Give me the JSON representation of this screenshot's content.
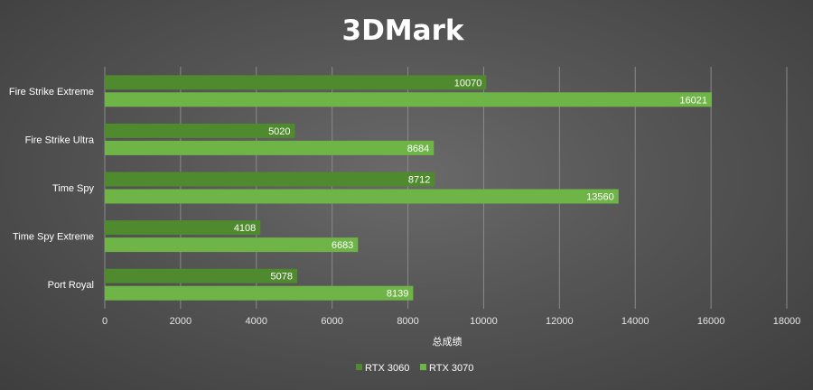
{
  "chart_data": {
    "type": "bar",
    "orientation": "horizontal",
    "title": "3DMark",
    "xlabel": "总成绩",
    "ylabel": "",
    "categories": [
      "Fire Strike Extreme",
      "Fire Strike Ultra",
      "Time Spy",
      "Time Spy Extreme",
      "Port Royal"
    ],
    "series": [
      {
        "name": "RTX 3060",
        "values": [
          10070,
          5020,
          8712,
          4108,
          5078
        ],
        "color": "#4f8a2e"
      },
      {
        "name": "RTX 3070",
        "values": [
          16021,
          8684,
          13560,
          6683,
          8139
        ],
        "color": "#6fb447"
      }
    ],
    "xlim": [
      0,
      18000
    ],
    "ticks": [
      0,
      2000,
      4000,
      6000,
      8000,
      10000,
      12000,
      14000,
      16000,
      18000
    ],
    "grid": true,
    "legend": "bottom"
  }
}
